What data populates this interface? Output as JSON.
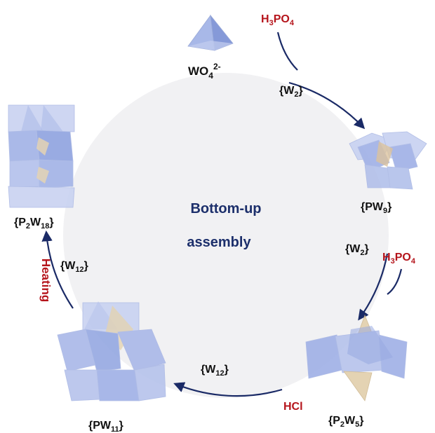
{
  "center": {
    "line1": "Bottom-up",
    "line2": "assembly"
  },
  "species": {
    "tungstate": {
      "base": "WO",
      "sub": "4",
      "sup": "2-"
    },
    "pw9": {
      "pre": "{PW",
      "sub": "9",
      "post": "}"
    },
    "p2w5": {
      "pre": "{P",
      "sub1": "2",
      "mid": "W",
      "sub2": "5",
      "post": "}"
    },
    "pw11": {
      "pre": "{PW",
      "sub": "11",
      "post": "}"
    },
    "p2w18": {
      "pre": "{P",
      "sub1": "2",
      "mid": "W",
      "sub2": "18",
      "post": "}"
    }
  },
  "fragments": {
    "w2_a": {
      "pre": "{W",
      "sub": "2",
      "post": "}"
    },
    "w2_b": {
      "pre": "{W",
      "sub": "2",
      "post": "}"
    },
    "w12_a": {
      "pre": "{W",
      "sub": "12",
      "post": "}"
    },
    "w12_b": {
      "pre": "{W",
      "sub": "12",
      "post": "}"
    }
  },
  "reagents": {
    "h3po4_a": {
      "a": "H",
      "sub1": "3",
      "b": "PO",
      "sub2": "4"
    },
    "h3po4_b": {
      "a": "H",
      "sub1": "3",
      "b": "PO",
      "sub2": "4"
    },
    "hcl": "HCl",
    "heating": "Heating"
  },
  "colors": {
    "circle_fill": "#f1f1f3",
    "arrow": "#1a2a66",
    "reagent_text": "#b5141b",
    "center_text": "#1c2f6b",
    "polyhedra_blue": "#8fa4e0",
    "polyhedra_tan": "#d6b889"
  }
}
